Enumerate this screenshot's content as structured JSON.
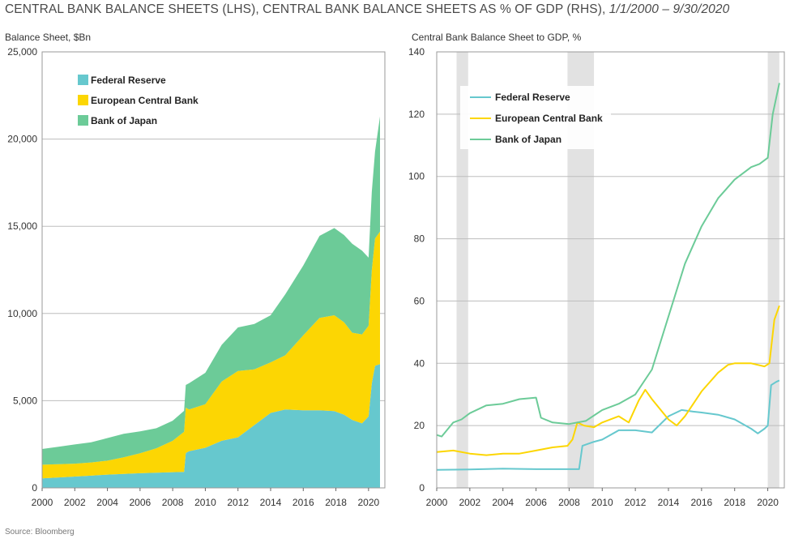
{
  "header": {
    "title_main": "CENTRAL BANK BALANCE SHEETS (LHS), CENTRAL BANK BALANCE SHEETS AS % OF GDP (RHS),",
    "title_dates": "1/1/2000 – 9/30/2020"
  },
  "source": "Source: Bloomberg",
  "colors": {
    "fed": "#66c8ce",
    "ecb": "#fcd603",
    "boj": "#6ccb98",
    "recession": "#e2e2e2",
    "grid": "#bdbdbd"
  },
  "chart_data": [
    {
      "type": "area",
      "stacked": true,
      "ylabel": "Balance Sheet, $Bn",
      "ylim": [
        0,
        25000
      ],
      "yticks": [
        "25,000",
        "20,000",
        "15,000",
        "10,000",
        "5,000",
        "0"
      ],
      "xlim": [
        2000,
        2021
      ],
      "xticks": [
        "2000",
        "2002",
        "2004",
        "2006",
        "2008",
        "2010",
        "2012",
        "2014",
        "2016",
        "2018",
        "2020"
      ],
      "grid": true,
      "legend_position": "top-left",
      "x": [
        2000,
        2001,
        2002,
        2003,
        2004,
        2005,
        2006,
        2007,
        2008,
        2008.7,
        2008.8,
        2009,
        2010,
        2011,
        2012,
        2013,
        2014,
        2014.9,
        2016,
        2017,
        2017.9,
        2018.5,
        2019,
        2019.6,
        2020.0,
        2020.2,
        2020.4,
        2020.7
      ],
      "series": [
        {
          "name": "Federal Reserve",
          "values": [
            550,
            600,
            650,
            700,
            760,
            800,
            840,
            870,
            900,
            920,
            2000,
            2100,
            2300,
            2700,
            2900,
            3600,
            4300,
            4500,
            4450,
            4450,
            4400,
            4200,
            3900,
            3700,
            4100,
            6000,
            7000,
            7100
          ]
        },
        {
          "name": "European Central Bank",
          "values": [
            780,
            760,
            740,
            760,
            800,
            950,
            1150,
            1400,
            1800,
            2300,
            2600,
            2400,
            2500,
            3400,
            3800,
            3200,
            2900,
            3100,
            4300,
            5300,
            5500,
            5300,
            5000,
            5100,
            5200,
            6500,
            7300,
            7600
          ]
        },
        {
          "name": "Bank of Japan",
          "values": [
            900,
            1000,
            1100,
            1150,
            1300,
            1350,
            1250,
            1150,
            1150,
            1200,
            1300,
            1500,
            1800,
            2100,
            2500,
            2600,
            2700,
            3500,
            4000,
            4700,
            5000,
            5000,
            5100,
            4800,
            3900,
            4500,
            5000,
            6600
          ]
        }
      ]
    },
    {
      "type": "line",
      "ylabel": "Central Bank Balance Sheet to GDP, %",
      "ylim": [
        0,
        140
      ],
      "yticks": [
        "140",
        "120",
        "100",
        "80",
        "60",
        "40",
        "20",
        "0"
      ],
      "xlim": [
        2000,
        2021
      ],
      "xticks": [
        "2000",
        "2002",
        "2004",
        "2006",
        "2008",
        "2010",
        "2012",
        "2014",
        "2016",
        "2018",
        "2020"
      ],
      "grid": true,
      "legend_position": "top-left",
      "recession_bands": [
        [
          2001.2,
          2001.9
        ],
        [
          2007.9,
          2009.5
        ],
        [
          2020.0,
          2020.7
        ]
      ],
      "series": [
        {
          "name": "Federal Reserve",
          "x": [
            2000,
            2002,
            2004,
            2006,
            2008,
            2008.6,
            2008.8,
            2009.5,
            2010,
            2011,
            2012,
            2013,
            2014,
            2014.8,
            2015.5,
            2016,
            2017,
            2018,
            2019,
            2019.4,
            2019.8,
            2020.0,
            2020.2,
            2020.5,
            2020.7
          ],
          "values": [
            5.8,
            5.9,
            6.2,
            6.0,
            6.0,
            6.0,
            13.5,
            14.8,
            15.5,
            18.5,
            18.5,
            17.8,
            23.0,
            25.0,
            24.5,
            24.2,
            23.5,
            22.0,
            19.0,
            17.5,
            19.0,
            20.0,
            33.0,
            34.0,
            34.5
          ]
        },
        {
          "name": "European Central Bank",
          "x": [
            2000,
            2001,
            2002,
            2003,
            2004,
            2005,
            2006,
            2007,
            2007.9,
            2008.2,
            2008.5,
            2008.9,
            2009.5,
            2010,
            2011,
            2011.6,
            2012.2,
            2012.6,
            2013,
            2014,
            2014.5,
            2015,
            2016,
            2017,
            2017.6,
            2018,
            2019,
            2019.8,
            2020.1,
            2020.4,
            2020.7
          ],
          "values": [
            11.5,
            12.0,
            11.0,
            10.5,
            11.0,
            11.0,
            12.0,
            13.0,
            13.5,
            15.5,
            21.0,
            20.0,
            19.5,
            21.0,
            23.0,
            21.0,
            28.0,
            31.5,
            28.5,
            22.0,
            20.0,
            23.0,
            31.0,
            37.0,
            39.5,
            40.0,
            40.0,
            39.0,
            40.0,
            54.0,
            58.5
          ]
        },
        {
          "name": "Bank of Japan",
          "x": [
            2000,
            2000.3,
            2001,
            2001.5,
            2002,
            2003,
            2004,
            2005,
            2006,
            2006.3,
            2007,
            2008,
            2009,
            2010,
            2011,
            2012,
            2013,
            2014,
            2015,
            2016,
            2017,
            2018,
            2019,
            2019.5,
            2020.0,
            2020.3,
            2020.7
          ],
          "values": [
            17.0,
            16.5,
            21.0,
            22.0,
            24.0,
            26.5,
            27.0,
            28.5,
            29.0,
            22.5,
            21.0,
            20.5,
            21.5,
            25.0,
            27.0,
            30.0,
            38.0,
            55.0,
            72.0,
            84.0,
            93.0,
            99.0,
            103.0,
            104.0,
            106.0,
            120.0,
            130.0
          ]
        }
      ]
    }
  ]
}
